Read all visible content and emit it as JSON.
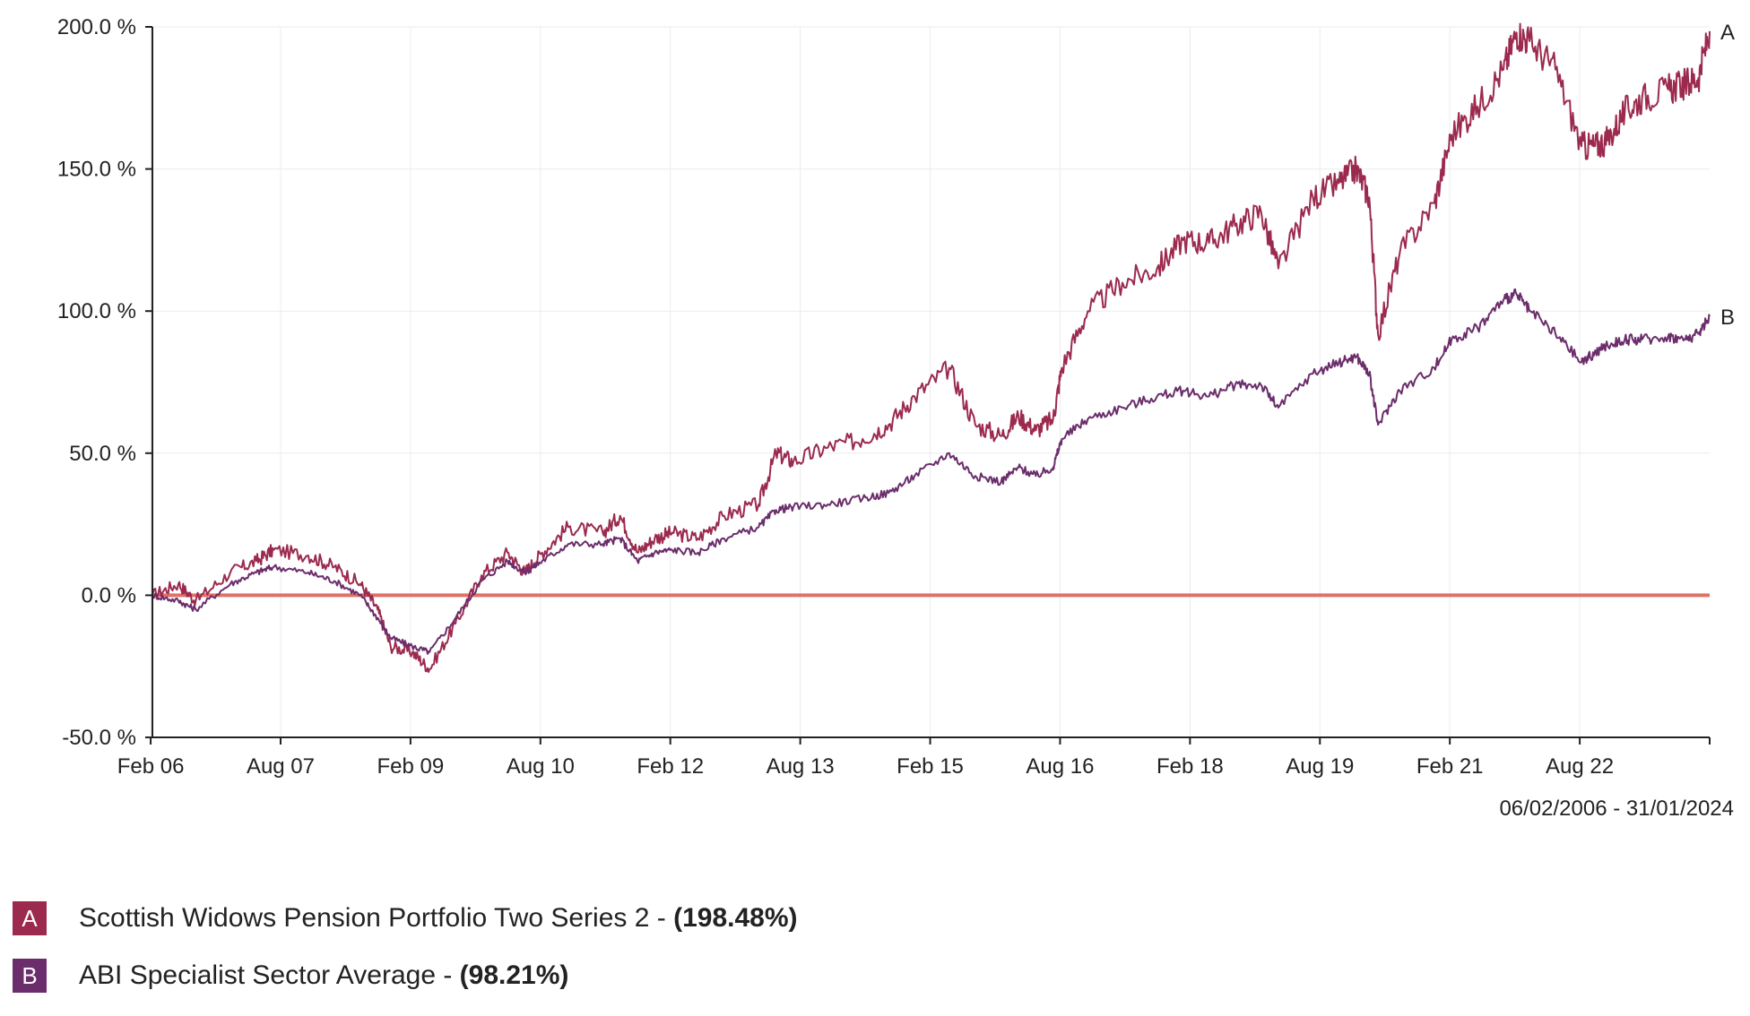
{
  "chart_data": {
    "type": "line",
    "title": "",
    "xlabel": "",
    "ylabel": "",
    "ylim": [
      -50,
      200
    ],
    "yticks": [
      -50,
      0,
      50,
      100,
      150,
      200
    ],
    "ytick_labels": [
      "-50.0 %",
      "0.0 %",
      "50.0 %",
      "100.0 %",
      "150.0 %",
      "200.0 %"
    ],
    "xlim": [
      2006.1,
      2024.08
    ],
    "xticks": [
      2006.08,
      2007.58,
      2009.08,
      2010.58,
      2012.08,
      2013.58,
      2015.08,
      2016.58,
      2018.08,
      2019.58,
      2021.08,
      2022.58
    ],
    "xtick_labels": [
      "Feb 06",
      "Aug 07",
      "Feb 09",
      "Aug 10",
      "Feb 12",
      "Aug 13",
      "Feb 15",
      "Aug 16",
      "Feb 18",
      "Aug 19",
      "Feb 21",
      "Aug 22"
    ],
    "date_range": "06/02/2006 - 31/01/2024",
    "zero_line_color": "#e07065",
    "grid": true,
    "series": [
      {
        "key": "A",
        "name": "Scottish Widows Pension Portfolio Two Series 2",
        "final_return": "(198.48%)",
        "color": "#9b2a4e",
        "x": [
          2006.1,
          2006.4,
          2006.6,
          2007.0,
          2007.3,
          2007.5,
          2007.9,
          2008.2,
          2008.5,
          2008.7,
          2008.85,
          2009.1,
          2009.3,
          2009.6,
          2009.9,
          2010.2,
          2010.4,
          2010.6,
          2010.9,
          2011.3,
          2011.5,
          2011.7,
          2011.9,
          2012.1,
          2012.4,
          2012.7,
          2013.1,
          2013.3,
          2013.5,
          2013.9,
          2014.3,
          2014.6,
          2014.9,
          2015.3,
          2015.6,
          2015.9,
          2016.1,
          2016.3,
          2016.5,
          2016.6,
          2016.9,
          2017.3,
          2017.7,
          2018.0,
          2018.3,
          2018.6,
          2018.9,
          2019.1,
          2019.5,
          2019.8,
          2020.0,
          2020.15,
          2020.25,
          2020.5,
          2020.9,
          2021.1,
          2021.4,
          2021.7,
          2021.85,
          2022.0,
          2022.3,
          2022.6,
          2022.75,
          2022.9,
          2023.1,
          2023.3,
          2023.6,
          2023.8,
          2023.95,
          2024.08
        ],
        "y": [
          0,
          4,
          -2,
          8,
          12,
          16,
          14,
          10,
          4,
          -5,
          -18,
          -20,
          -26,
          -10,
          7,
          15,
          8,
          15,
          24,
          22,
          28,
          15,
          20,
          22,
          20,
          28,
          32,
          50,
          47,
          52,
          55,
          60,
          70,
          80,
          60,
          56,
          63,
          58,
          62,
          80,
          100,
          110,
          115,
          125,
          124,
          130,
          135,
          115,
          140,
          145,
          150,
          140,
          92,
          120,
          138,
          162,
          172,
          185,
          198,
          195,
          185,
          158,
          158,
          160,
          170,
          175,
          178,
          180,
          182,
          198.48
        ]
      },
      {
        "key": "B",
        "name": "ABI Specialist Sector Average",
        "final_return": "(98.21%)",
        "color": "#6b2d6b",
        "x": [
          2006.1,
          2006.4,
          2006.6,
          2007.0,
          2007.3,
          2007.5,
          2007.9,
          2008.2,
          2008.5,
          2008.7,
          2008.85,
          2009.1,
          2009.3,
          2009.6,
          2009.9,
          2010.2,
          2010.4,
          2010.6,
          2010.9,
          2011.3,
          2011.5,
          2011.7,
          2011.9,
          2012.1,
          2012.4,
          2012.7,
          2013.1,
          2013.3,
          2013.5,
          2013.9,
          2014.3,
          2014.6,
          2014.9,
          2015.3,
          2015.6,
          2015.9,
          2016.1,
          2016.3,
          2016.5,
          2016.6,
          2016.9,
          2017.3,
          2017.7,
          2018.0,
          2018.3,
          2018.6,
          2018.9,
          2019.1,
          2019.5,
          2019.8,
          2020.0,
          2020.15,
          2020.25,
          2020.5,
          2020.9,
          2021.1,
          2021.4,
          2021.7,
          2021.85,
          2022.0,
          2022.3,
          2022.6,
          2022.75,
          2022.9,
          2023.1,
          2023.3,
          2023.6,
          2023.8,
          2023.95,
          2024.08
        ],
        "y": [
          0,
          -2,
          -5,
          4,
          8,
          10,
          8,
          5,
          0,
          -8,
          -15,
          -18,
          -20,
          -8,
          5,
          12,
          8,
          12,
          18,
          18,
          20,
          12,
          15,
          16,
          15,
          20,
          24,
          30,
          31,
          32,
          34,
          36,
          42,
          50,
          42,
          40,
          45,
          42,
          45,
          55,
          62,
          66,
          70,
          72,
          70,
          74,
          74,
          66,
          78,
          82,
          84,
          78,
          60,
          72,
          80,
          90,
          94,
          104,
          106,
          100,
          92,
          82,
          85,
          88,
          90,
          90,
          91,
          90,
          92,
          98.21
        ]
      }
    ]
  },
  "legend": [
    {
      "key": "A",
      "label": "Scottish Widows Pension Portfolio Two Series 2",
      "separator": " - ",
      "value": "(198.48%)",
      "color": "#9b2a4e"
    },
    {
      "key": "B",
      "label": "ABI Specialist Sector Average",
      "separator": " - ",
      "value": "(98.21%)",
      "color": "#6b2d6b"
    }
  ]
}
